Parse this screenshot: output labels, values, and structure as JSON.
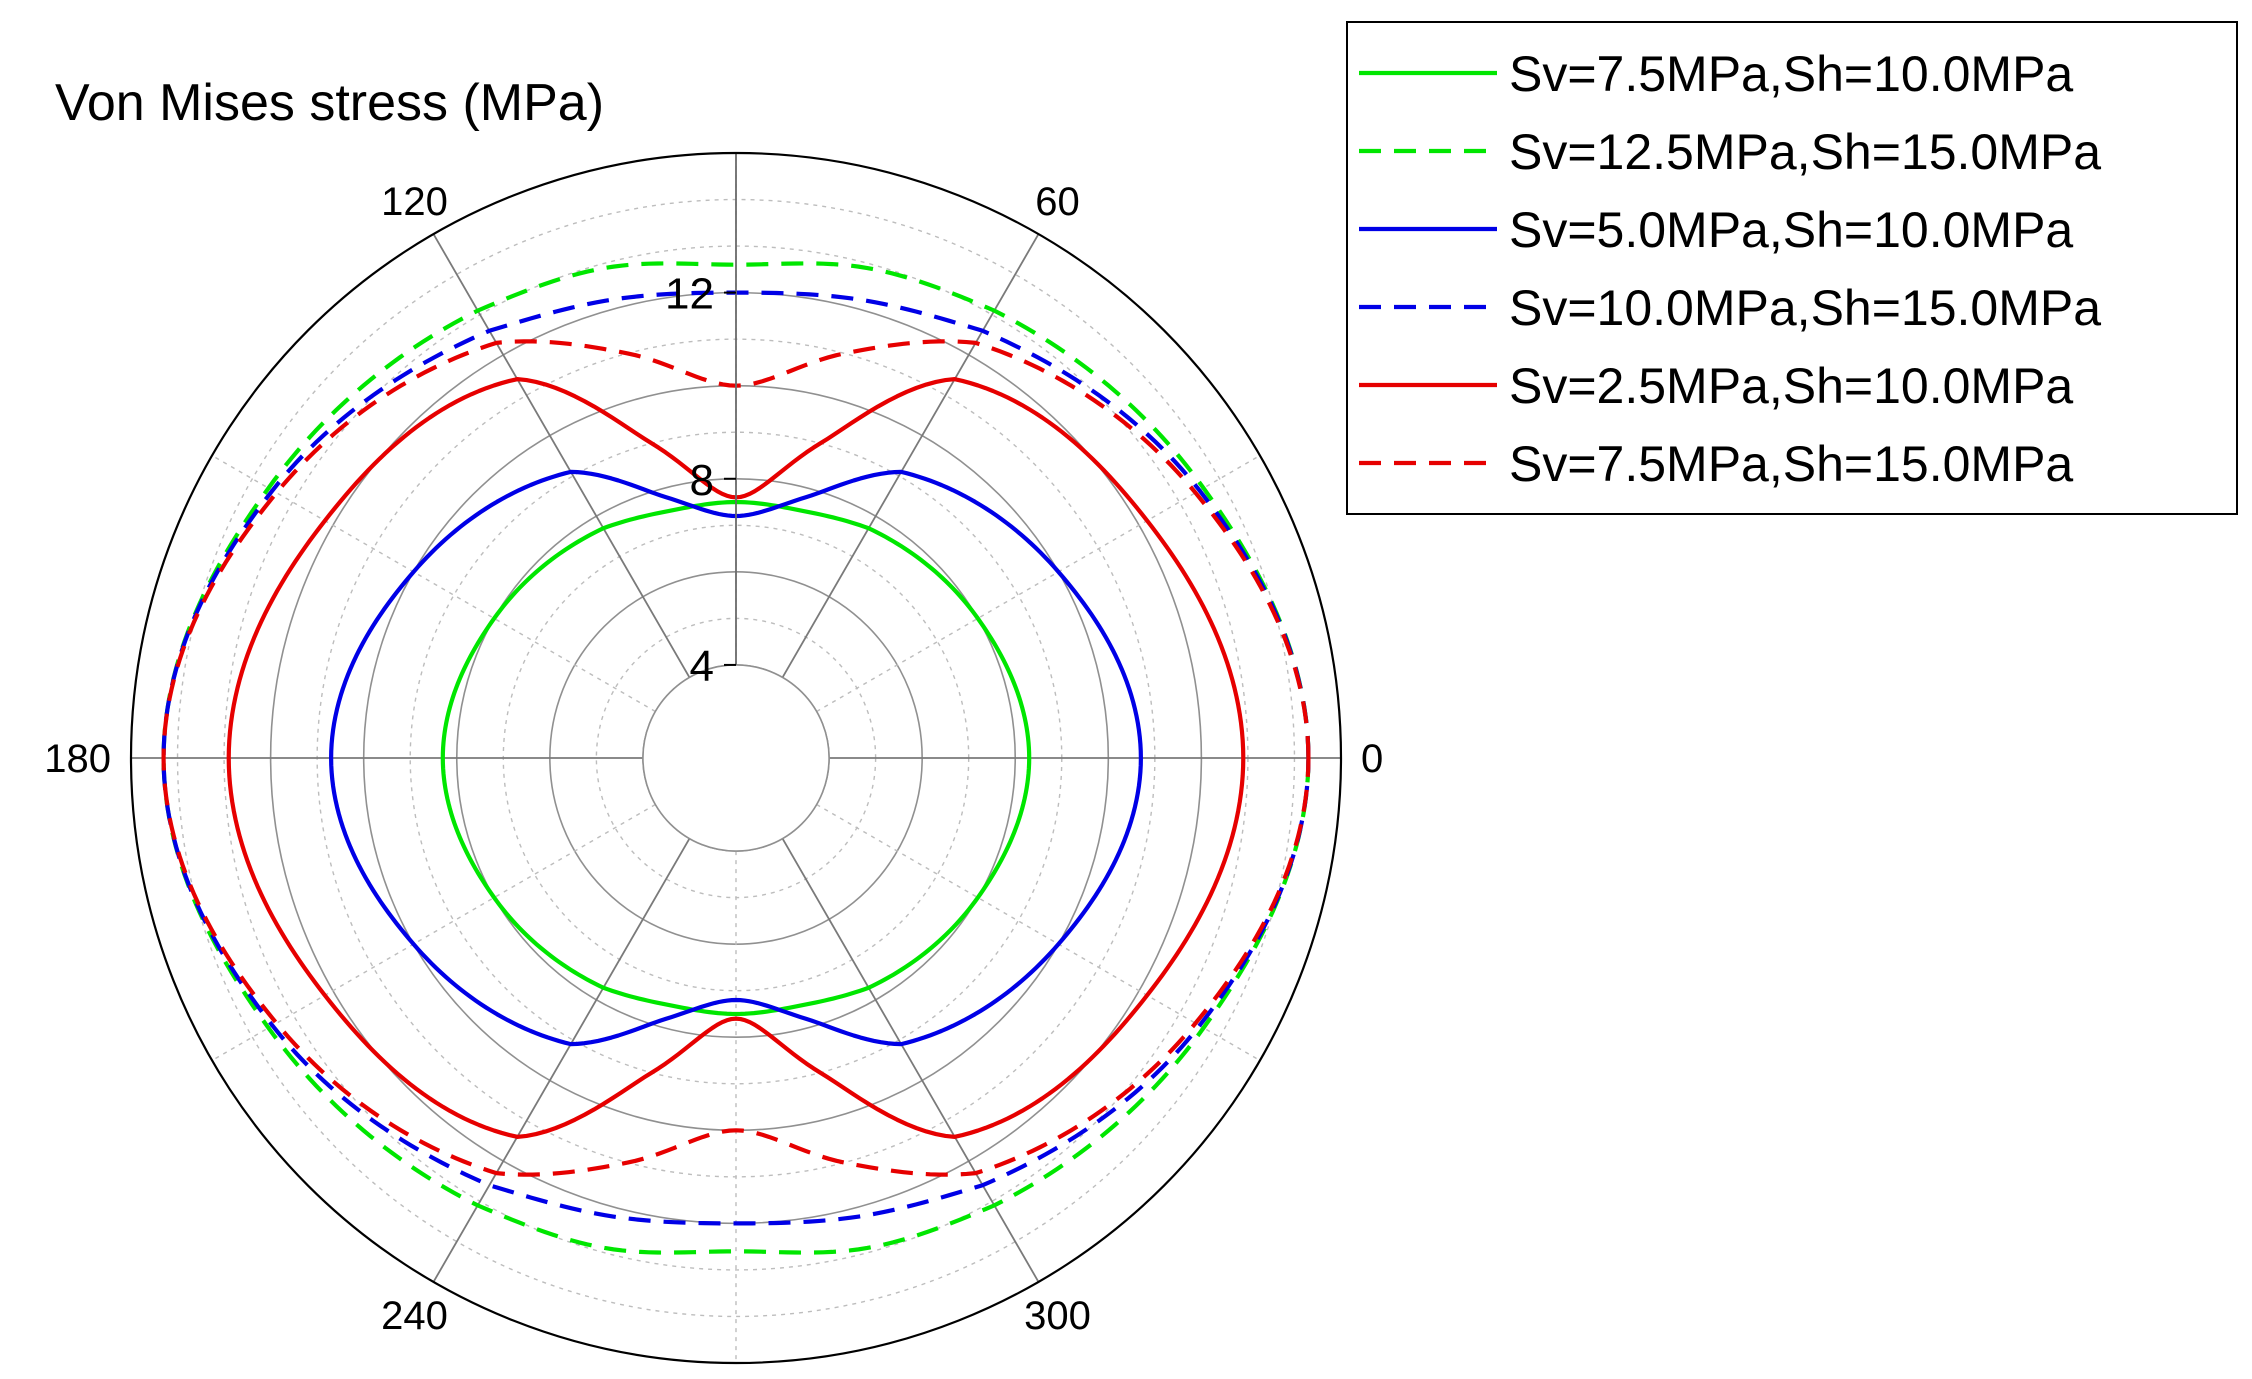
{
  "chart_data": {
    "type": "line",
    "subtype": "polar",
    "title": "Von Mises stress (MPa)",
    "angle_ticks": [
      0,
      60,
      120,
      180,
      240,
      300
    ],
    "angle_tick_labels": [
      "0",
      "60",
      "120",
      "180",
      "240",
      "300"
    ],
    "angle_gridlines_deg": [
      0,
      30,
      60,
      90,
      120,
      150,
      180,
      210,
      240,
      270,
      300,
      330
    ],
    "radial_range": [
      2,
      15
    ],
    "radial_ticks": [
      4,
      8,
      12
    ],
    "radial_tick_labels": [
      "4",
      "8",
      "12"
    ],
    "radial_solid_circles": [
      4,
      6,
      8,
      10,
      12
    ],
    "radial_dotted_circles": [
      5,
      7,
      9,
      11,
      13,
      14
    ],
    "grid": true,
    "legend_position": "top-right",
    "theta_deg": [
      0,
      30,
      60,
      75,
      90,
      105,
      120,
      150,
      180,
      210,
      240,
      255,
      270,
      285,
      300,
      330,
      360
    ],
    "series": [
      {
        "name": "Sv=7.5MPa,Sh=10.0MPa",
        "color": "#00e600",
        "dash": "solid",
        "r": [
          8.3,
          8.0,
          7.7,
          7.5,
          7.5,
          7.5,
          7.7,
          8.0,
          8.3,
          8.0,
          7.7,
          7.5,
          7.5,
          7.5,
          7.7,
          8.0,
          8.3
        ]
      },
      {
        "name": "Sv=12.5MPa,Sh=15.0MPa",
        "color": "#00e600",
        "dash": "dashed",
        "r": [
          14.3,
          13.6,
          13.1,
          12.9,
          12.6,
          12.9,
          13.1,
          13.6,
          14.3,
          13.6,
          13.1,
          12.9,
          12.6,
          12.9,
          13.1,
          13.6,
          14.3
        ]
      },
      {
        "name": "Sv=5.0MPa,Sh=10.0MPa",
        "color": "#0000e6",
        "dash": "solid",
        "r": [
          10.7,
          10.0,
          9.1,
          7.8,
          7.2,
          7.8,
          9.1,
          10.0,
          10.7,
          10.0,
          9.1,
          7.8,
          7.2,
          7.8,
          9.1,
          10.0,
          10.7
        ]
      },
      {
        "name": "Sv=10.0MPa,Sh=15.0MPa",
        "color": "#0000e6",
        "dash": "dashed",
        "r": [
          14.3,
          13.5,
          12.6,
          12.2,
          12.0,
          12.2,
          12.6,
          13.5,
          14.3,
          13.5,
          12.6,
          12.2,
          12.0,
          12.2,
          12.6,
          13.5,
          14.3
        ]
      },
      {
        "name": "Sv=2.5MPa,Sh=10.0MPa",
        "color": "#e60000",
        "dash": "solid",
        "r": [
          12.9,
          12.2,
          11.4,
          9.0,
          7.6,
          9.0,
          11.4,
          12.2,
          12.9,
          12.2,
          11.4,
          9.0,
          7.6,
          9.0,
          11.4,
          12.2,
          12.9
        ]
      },
      {
        "name": "Sv=7.5MPa,Sh=15.0MPa",
        "color": "#e60000",
        "dash": "dashed",
        "r": [
          14.3,
          13.4,
          12.3,
          11.0,
          10.0,
          11.0,
          12.3,
          13.4,
          14.3,
          13.4,
          12.3,
          11.0,
          10.0,
          11.0,
          12.3,
          13.4,
          14.3
        ]
      }
    ]
  }
}
